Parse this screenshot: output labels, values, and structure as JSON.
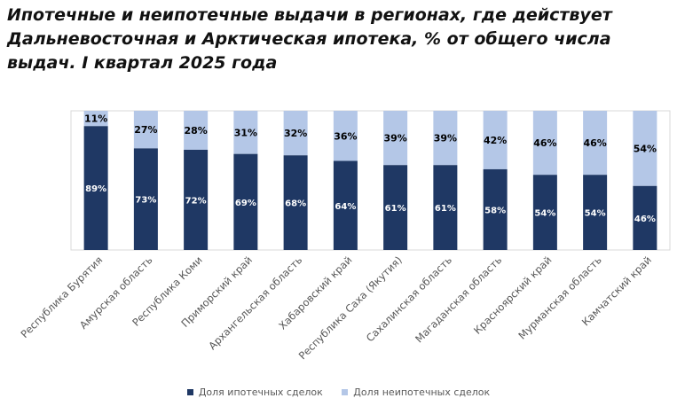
{
  "title_lines": [
    "Ипотечные и неипотечные выдачи в регионах, где действует",
    "Дальневосточная и Арктическая ипотека, % от общего числа",
    "выдач. I квартал 2025 года"
  ],
  "colors": {
    "mortgage": "#1f3864",
    "non_mortgage": "#b4c7e7",
    "mortgage_label": "#ffffff",
    "non_mortgage_label": "#000000"
  },
  "chart_data": {
    "type": "bar",
    "stacked": true,
    "title": "Ипотечные и неипотечные выдачи в регионах, где действует Дальневосточная и Арктическая ипотека, % от общего числа выдач. I квартал 2025 года",
    "categories": [
      "Республика Бурятия",
      "Амурская область",
      "Республика Коми",
      "Приморский край",
      "Архангельская область",
      "Хабаровский край",
      "Республика Саха (Якутия)",
      "Сахалинская область",
      "Магаданская область",
      "Красноярский край",
      "Мурманская область",
      "Камчатский край"
    ],
    "series": [
      {
        "name": "Доля ипотечных сделок",
        "values": [
          89,
          73,
          72,
          69,
          68,
          64,
          61,
          61,
          58,
          54,
          54,
          46
        ]
      },
      {
        "name": "Доля неипотечных сделок",
        "values": [
          11,
          27,
          28,
          31,
          32,
          36,
          39,
          39,
          42,
          46,
          46,
          54
        ]
      }
    ],
    "value_suffix": "%",
    "ylim": [
      0,
      100
    ],
    "xlabel": "",
    "ylabel": "",
    "legend_position": "bottom"
  }
}
